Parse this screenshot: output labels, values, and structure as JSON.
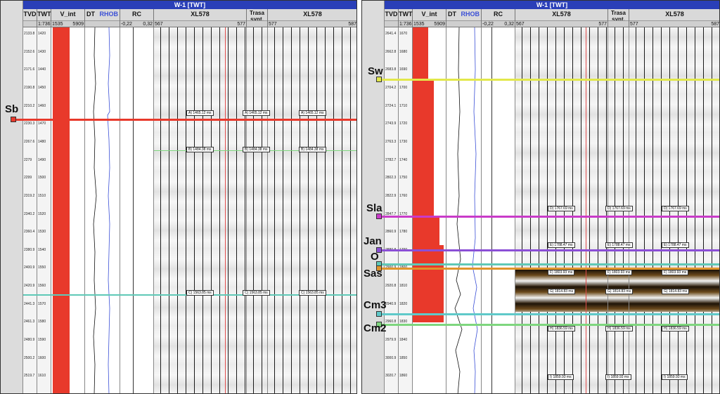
{
  "window_title": "W-1 [TWT]",
  "columns": {
    "tvd": "TVD",
    "twt": "TWT",
    "vint": "V_int",
    "dt": "DT",
    "rhob": "RHOB",
    "rc": "RC",
    "xl_left": "XL578",
    "synthetic": "Trasa synt.",
    "xl_right": "XL578"
  },
  "scales": {
    "twt": "1:736",
    "vint_min": "1535",
    "vint_max": "5909",
    "rc_min": "-0,22",
    "rc_max": "0,32",
    "xl_left_min": "567",
    "xl_left_max": "577",
    "xl_right_min": "577",
    "xl_right_max": "587"
  },
  "left_panel": {
    "twt_ticks": [
      "1420",
      "1430",
      "1440",
      "1450",
      "1460",
      "1470",
      "1480",
      "1490",
      "1500",
      "1510",
      "1520",
      "1530",
      "1540",
      "1550",
      "1560",
      "1570",
      "1580",
      "1590",
      "1600",
      "1610"
    ],
    "tvd_ticks": [
      "2133.8",
      "2152.6",
      "2171.6",
      "2190.8",
      "2210.2",
      "2230.3",
      "2267.6",
      "2279",
      "2299",
      "2319.2",
      "2340.2",
      "2360.4",
      "2380.9",
      "2400.9",
      "2420.9",
      "2441.3",
      "2461.3",
      "2480.9",
      "2500.2",
      "2519.7"
    ],
    "horizons": [
      {
        "name": "Sb",
        "color": "#e8392b"
      }
    ],
    "picks": [
      "A) 1465.12 ms",
      "B) 1484.38 ms",
      "C) 1563.85 ms"
    ]
  },
  "right_panel": {
    "twt_ticks": [
      "1670",
      "1680",
      "1690",
      "1700",
      "1710",
      "1720",
      "1730",
      "1740",
      "1750",
      "1760",
      "1770",
      "1780",
      "1790",
      "1800",
      "1810",
      "1820",
      "1830",
      "1840",
      "1850",
      "1860"
    ],
    "tvd_ticks": [
      "2641.4",
      "2662.8",
      "2683.8",
      "2704.2",
      "2724.1",
      "2743.9",
      "2763.3",
      "2782.7",
      "2802.3",
      "2822.9",
      "2847.7",
      "2860.9",
      "2880.8",
      "2900.9",
      "2920.8",
      "2940.9",
      "2960.8",
      "2979.9",
      "3000.9",
      "3020.7"
    ],
    "horizons": [
      {
        "name": "Sw",
        "color": "#e2e84a"
      },
      {
        "name": "Sla",
        "color": "#c93bc9"
      },
      {
        "name": "Jan",
        "color": "#8b4fd6"
      },
      {
        "name": "O",
        "color": "#5fc9b7"
      },
      {
        "name": "Sas",
        "color": "#e0952b"
      },
      {
        "name": "Cm3",
        "color": "#5fc9c9"
      },
      {
        "name": "Cm2",
        "color": "#7ed67e"
      }
    ],
    "picks": [
      "D) 1767.69 ms",
      "E) 1788.47 ms",
      "F) 1803.93 ms",
      "G) 1814.83 ms",
      "H) 1836.59 ms",
      "I) 1859.93 ms"
    ]
  },
  "colors": {
    "vint_fill": "#e8392b",
    "title_bar": "#2a3fb8",
    "rhob_curve": "#3a4fd6",
    "dt_curve": "#111111"
  }
}
